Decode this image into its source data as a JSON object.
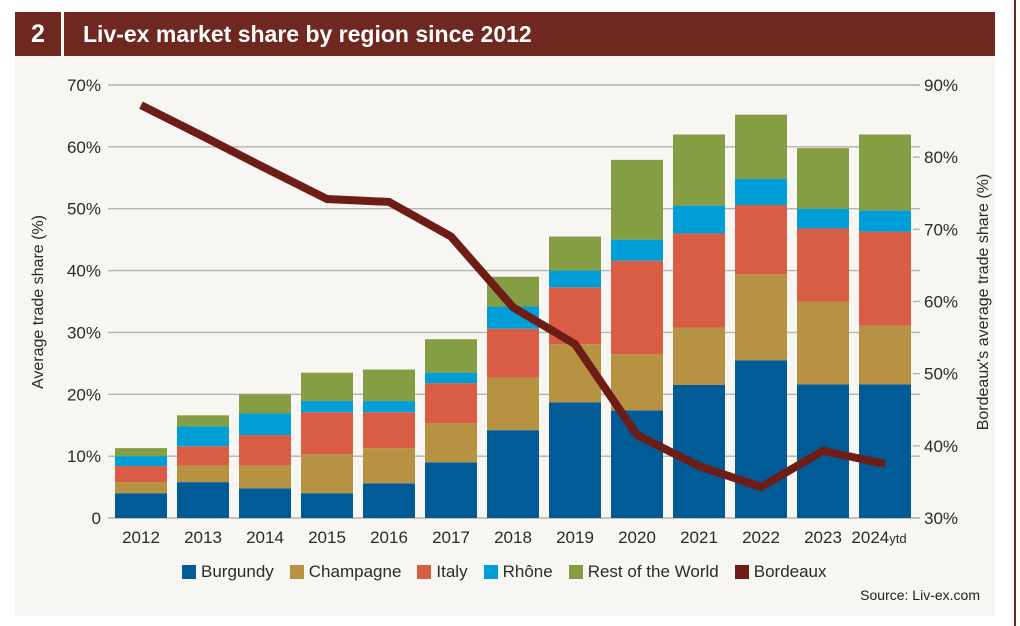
{
  "header": {
    "number": "2",
    "title": "Liv-ex market share by region since 2012"
  },
  "source": "Source: Liv-ex.com",
  "colors": {
    "Burgundy": "#005b96",
    "Champagne": "#b89243",
    "Italy": "#d95c44",
    "Rhône": "#009ed6",
    "Rest of the World": "#869e43",
    "Bordeaux": "#6e1d16"
  },
  "chart_data": {
    "type": "bar",
    "stacked": true,
    "title": "Liv-ex market share by region since 2012",
    "xlabel": "",
    "ylabel": "Average trade share (%)",
    "y2label": "Bordeaux's average trade share (%)",
    "ylim": [
      0,
      70
    ],
    "y2lim": [
      30,
      90
    ],
    "yticks": [
      "0",
      "10%",
      "20%",
      "30%",
      "40%",
      "50%",
      "60%",
      "70%"
    ],
    "y2ticks": [
      "30%",
      "40%",
      "50%",
      "60%",
      "70%",
      "80%",
      "90%"
    ],
    "grid": true,
    "legend": "bottom",
    "categories": [
      "2012",
      "2013",
      "2014",
      "2015",
      "2016",
      "2017",
      "2018",
      "2019",
      "2020",
      "2021",
      "2022",
      "2023",
      "2024"
    ],
    "category_suffix": {
      "2024": "ytd"
    },
    "series": [
      {
        "name": "Burgundy",
        "type": "bar",
        "values": [
          4.0,
          5.8,
          4.8,
          4.0,
          5.6,
          9.0,
          14.2,
          18.7,
          17.4,
          21.5,
          25.5,
          21.6,
          21.6
        ]
      },
      {
        "name": "Champagne",
        "type": "bar",
        "values": [
          1.8,
          2.7,
          3.7,
          6.3,
          5.7,
          6.3,
          8.5,
          9.4,
          9.1,
          9.3,
          13.9,
          13.4,
          9.5
        ]
      },
      {
        "name": "Italy",
        "type": "bar",
        "values": [
          2.6,
          3.1,
          4.9,
          6.8,
          5.8,
          6.5,
          7.9,
          9.2,
          15.1,
          15.2,
          11.2,
          11.8,
          15.2
        ]
      },
      {
        "name": "Rhône",
        "type": "bar",
        "values": [
          1.6,
          3.2,
          3.5,
          1.8,
          1.8,
          1.7,
          3.6,
          2.7,
          3.4,
          4.5,
          4.2,
          3.2,
          3.4
        ]
      },
      {
        "name": "Rest of the World",
        "type": "bar",
        "values": [
          1.3,
          1.8,
          3.1,
          4.6,
          5.1,
          5.4,
          4.8,
          5.5,
          12.9,
          11.5,
          10.4,
          9.8,
          12.3
        ]
      },
      {
        "name": "Bordeaux",
        "type": "line",
        "axis": "right",
        "values": [
          87.2,
          null,
          null,
          74.2,
          73.8,
          69.0,
          59.2,
          54.1,
          41.5,
          37.2,
          34.3,
          39.3,
          37.5
        ]
      }
    ],
    "bordeaux_interpolated": [
      87.2,
      82.9,
      78.5,
      74.2,
      73.8,
      69.0,
      59.2,
      54.1,
      41.5,
      37.2,
      34.3,
      39.3,
      37.5
    ]
  }
}
